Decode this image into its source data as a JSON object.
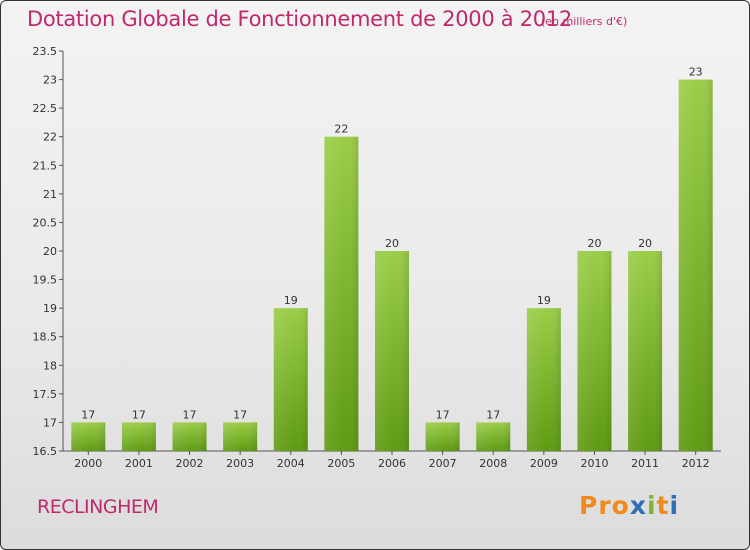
{
  "title": "Dotation Globale de Fonctionnement de 2000 à 2012",
  "subtitle": "(en milliers d'€)",
  "commune": "RECLINGHEM",
  "logo": {
    "p1": "Pro",
    "p2": "x",
    "p3": "i",
    "p4": "t",
    "p5": "i"
  },
  "colors": {
    "title": "#c0286e",
    "bar_top": "#9acd48",
    "bar_bottom": "#5e9a12"
  },
  "chart_data": {
    "type": "bar",
    "title": "Dotation Globale de Fonctionnement de 2000 à 2012",
    "subtitle": "(en milliers d'€)",
    "xlabel": "",
    "ylabel": "",
    "categories": [
      "2000",
      "2001",
      "2002",
      "2003",
      "2004",
      "2005",
      "2006",
      "2007",
      "2008",
      "2009",
      "2010",
      "2011",
      "2012"
    ],
    "values": [
      17,
      17,
      17,
      17,
      19,
      22,
      20,
      17,
      17,
      19,
      20,
      20,
      23
    ],
    "data_labels": [
      "17",
      "17",
      "17",
      "17",
      "19",
      "22",
      "20",
      "17",
      "17",
      "19",
      "20",
      "20",
      "23"
    ],
    "ylim": [
      16.5,
      23.5
    ],
    "yticks": [
      16.5,
      17,
      17.5,
      18,
      18.5,
      19,
      19.5,
      20,
      20.5,
      21,
      21.5,
      22,
      22.5,
      23,
      23.5
    ],
    "ytick_labels": [
      "16.5",
      "17",
      "17.5",
      "18",
      "18.5",
      "19",
      "19.5",
      "20",
      "20.5",
      "21",
      "21.5",
      "22",
      "22.5",
      "23",
      "23.5"
    ],
    "grid": false,
    "legend": "none"
  }
}
